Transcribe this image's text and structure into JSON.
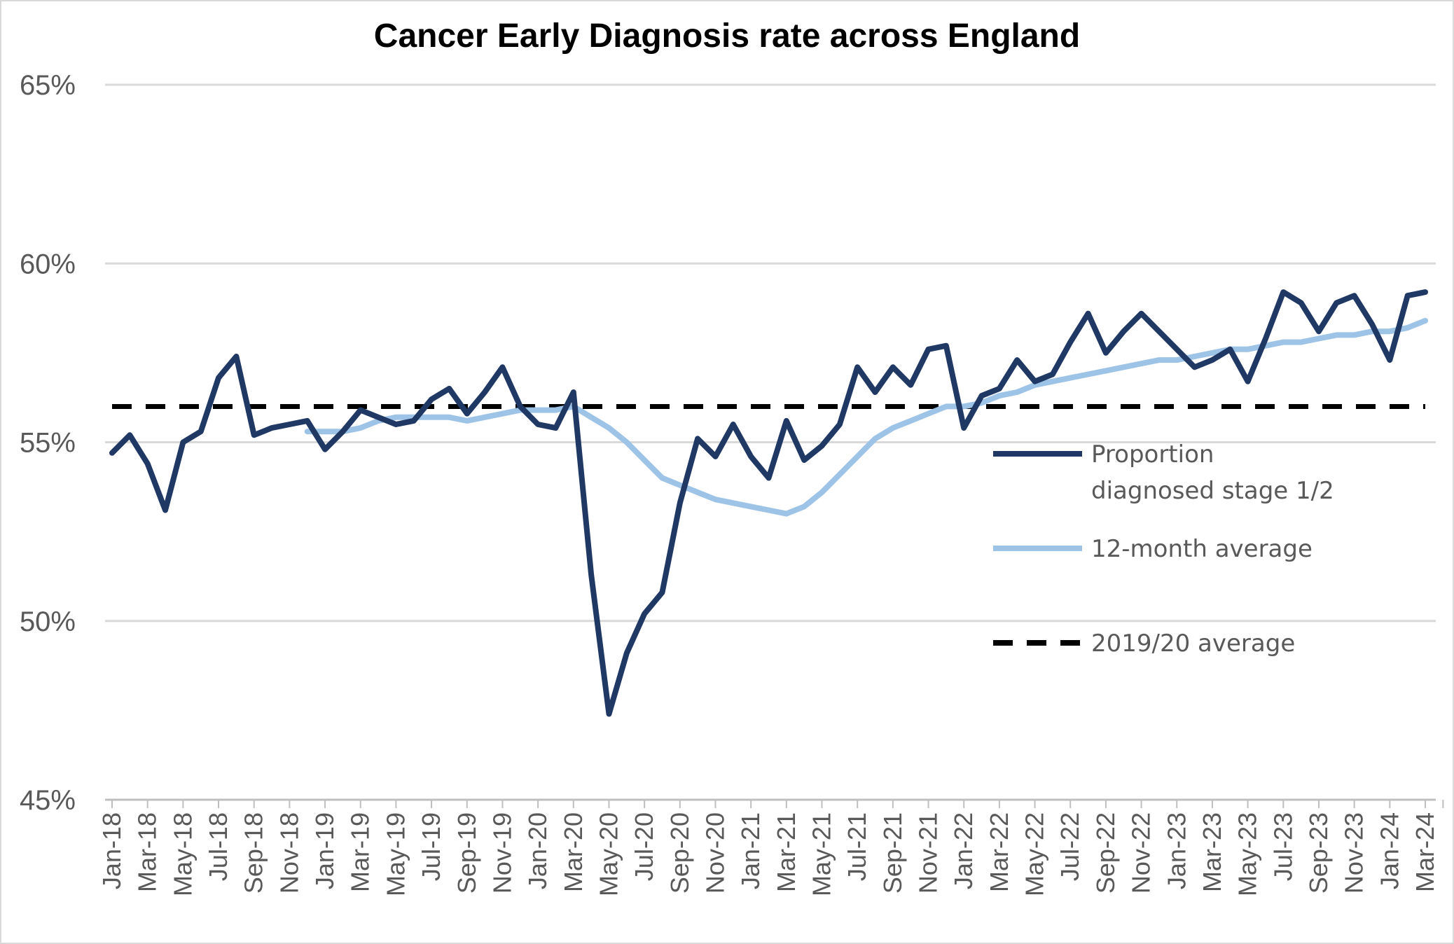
{
  "chart_data": {
    "type": "line",
    "title": "Cancer Early Diagnosis rate across England",
    "xlabel": "",
    "ylabel": "",
    "ylim": [
      45,
      65
    ],
    "y_ticks": [
      "45%",
      "50%",
      "55%",
      "60%",
      "65%"
    ],
    "x_tick_labels": [
      "Jan-18",
      "Mar-18",
      "May-18",
      "Jul-18",
      "Sep-18",
      "Nov-18",
      "Jan-19",
      "Mar-19",
      "May-19",
      "Jul-19",
      "Sep-19",
      "Nov-19",
      "Jan-20",
      "Mar-20",
      "May-20",
      "Jul-20",
      "Sep-20",
      "Nov-20",
      "Jan-21",
      "Mar-21",
      "May-21",
      "Jul-21",
      "Sep-21",
      "Nov-21",
      "Jan-22",
      "Mar-22",
      "May-22",
      "Jul-22",
      "Sep-22",
      "Nov-22",
      "Jan-23",
      "Mar-23",
      "May-23",
      "Jul-23",
      "Sep-23",
      "Nov-23",
      "Jan-24",
      "Mar-24"
    ],
    "x_months": [
      "Jan-18",
      "Feb-18",
      "Mar-18",
      "Apr-18",
      "May-18",
      "Jun-18",
      "Jul-18",
      "Aug-18",
      "Sep-18",
      "Oct-18",
      "Nov-18",
      "Dec-18",
      "Jan-19",
      "Feb-19",
      "Mar-19",
      "Apr-19",
      "May-19",
      "Jun-19",
      "Jul-19",
      "Aug-19",
      "Sep-19",
      "Oct-19",
      "Nov-19",
      "Dec-19",
      "Jan-20",
      "Feb-20",
      "Mar-20",
      "Apr-20",
      "May-20",
      "Jun-20",
      "Jul-20",
      "Aug-20",
      "Sep-20",
      "Oct-20",
      "Nov-20",
      "Dec-20",
      "Jan-21",
      "Feb-21",
      "Mar-21",
      "Apr-21",
      "May-21",
      "Jun-21",
      "Jul-21",
      "Aug-21",
      "Sep-21",
      "Oct-21",
      "Nov-21",
      "Dec-21",
      "Jan-22",
      "Feb-22",
      "Mar-22",
      "Apr-22",
      "May-22",
      "Jun-22",
      "Jul-22",
      "Aug-22",
      "Sep-22",
      "Oct-22",
      "Nov-22",
      "Dec-22",
      "Jan-23",
      "Feb-23",
      "Mar-23",
      "Apr-23",
      "May-23",
      "Jun-23",
      "Jul-23",
      "Aug-23",
      "Sep-23",
      "Oct-23",
      "Nov-23",
      "Dec-23",
      "Jan-24",
      "Feb-24",
      "Mar-24"
    ],
    "series": [
      {
        "name": "Proportion diagnosed stage 1/2",
        "color": "#1f3864",
        "style": "solid",
        "values": [
          54.7,
          55.2,
          54.4,
          53.1,
          55.0,
          55.3,
          56.8,
          57.4,
          55.2,
          55.4,
          55.5,
          55.6,
          54.8,
          55.3,
          55.9,
          55.7,
          55.5,
          55.6,
          56.2,
          56.5,
          55.8,
          56.4,
          57.1,
          56.0,
          55.5,
          55.4,
          56.4,
          51.3,
          47.4,
          49.1,
          50.2,
          50.8,
          53.3,
          55.1,
          54.6,
          55.5,
          54.6,
          54.0,
          55.6,
          54.5,
          54.9,
          55.5,
          57.1,
          56.4,
          57.1,
          56.6,
          57.6,
          57.7,
          55.4,
          56.3,
          56.5,
          57.3,
          56.7,
          56.9,
          57.8,
          58.6,
          57.5,
          58.1,
          58.6,
          58.1,
          57.6,
          57.1,
          57.3,
          57.6,
          56.7,
          57.9,
          59.2,
          58.9,
          58.1,
          58.9,
          59.1,
          58.3,
          57.3,
          59.1,
          59.2
        ]
      },
      {
        "name": "12-month average",
        "color": "#9dc3e6",
        "style": "solid",
        "values": [
          null,
          null,
          null,
          null,
          null,
          null,
          null,
          null,
          null,
          null,
          null,
          55.3,
          55.3,
          55.3,
          55.4,
          55.6,
          55.7,
          55.7,
          55.7,
          55.7,
          55.6,
          55.7,
          55.8,
          55.9,
          55.9,
          55.9,
          56.0,
          55.7,
          55.4,
          55.0,
          54.5,
          54.0,
          53.8,
          53.6,
          53.4,
          53.3,
          53.2,
          53.1,
          53.0,
          53.2,
          53.6,
          54.1,
          54.6,
          55.1,
          55.4,
          55.6,
          55.8,
          56.0,
          56.0,
          56.1,
          56.3,
          56.4,
          56.6,
          56.7,
          56.8,
          56.9,
          57.0,
          57.1,
          57.2,
          57.3,
          57.3,
          57.4,
          57.5,
          57.6,
          57.6,
          57.7,
          57.8,
          57.8,
          57.9,
          58.0,
          58.0,
          58.1,
          58.1,
          58.2,
          58.4
        ]
      },
      {
        "name": "2019/20 average",
        "color": "#000000",
        "style": "dashed",
        "value": 56.0
      }
    ],
    "legend": {
      "position": "right-middle",
      "items": [
        {
          "label_lines": [
            "Proportion",
            "diagnosed stage 1/2"
          ]
        },
        {
          "label_lines": [
            "12-month average"
          ]
        },
        {
          "label_lines": [
            "2019/20 average"
          ]
        }
      ]
    },
    "grid": true
  }
}
